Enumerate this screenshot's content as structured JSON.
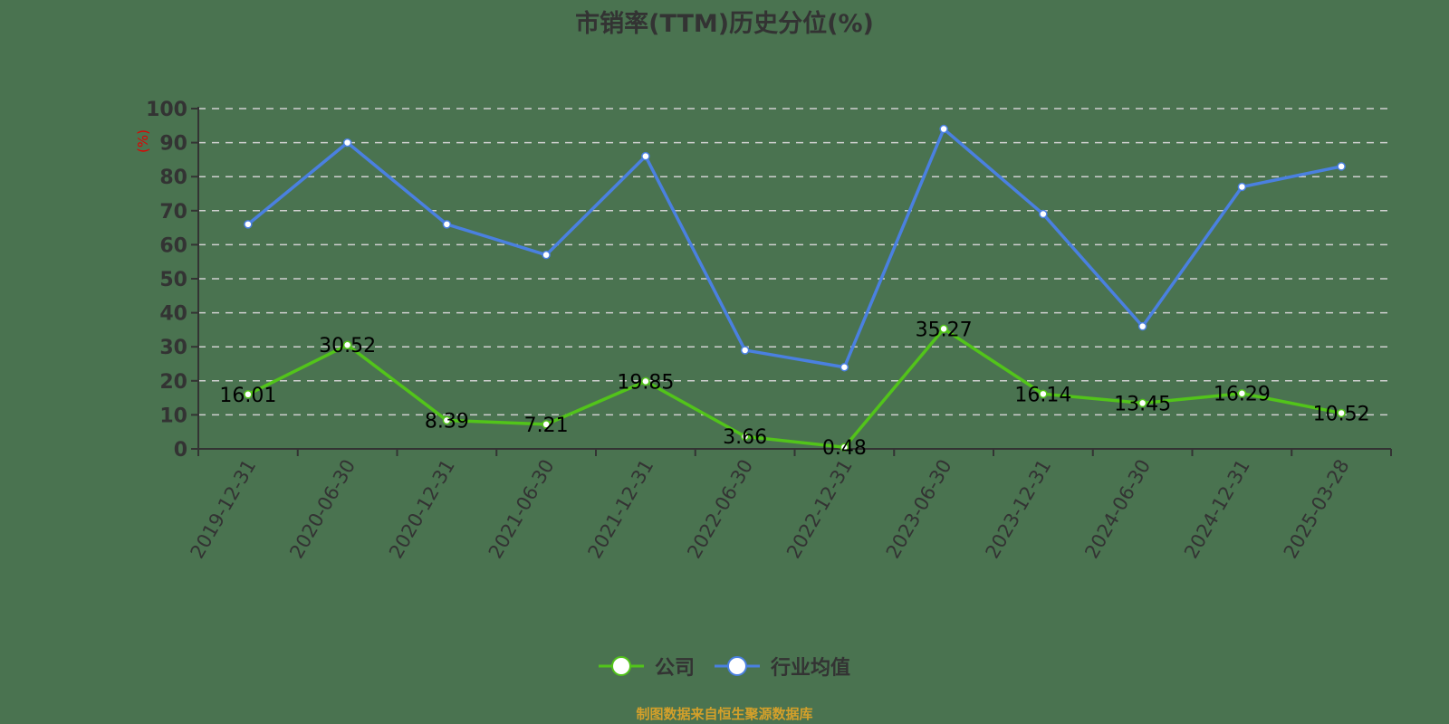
{
  "title": "市销率(TTM)历史分位(%)",
  "source": "制图数据来自恒生聚源数据库",
  "y_axis_unit": "(%)",
  "legend": [
    {
      "label": "公司",
      "color": "#52c41a"
    },
    {
      "label": "行业均值",
      "color": "#4a80e0"
    }
  ],
  "chart_data": {
    "type": "line",
    "title": "市销率(TTM)历史分位(%)",
    "xlabel": "",
    "ylabel": "(%)",
    "ylim": [
      0,
      100
    ],
    "yticks": [
      0,
      10,
      20,
      30,
      40,
      50,
      60,
      70,
      80,
      90,
      100
    ],
    "grid": true,
    "legend_position": "bottom",
    "categories": [
      "2019-12-31",
      "2020-06-30",
      "2020-12-31",
      "2021-06-30",
      "2021-12-31",
      "2022-06-30",
      "2022-12-31",
      "2023-06-30",
      "2023-12-31",
      "2024-06-30",
      "2024-12-31",
      "2025-03-28"
    ],
    "series": [
      {
        "name": "公司",
        "color": "#52c41a",
        "labeled": true,
        "values": [
          16.01,
          30.52,
          8.39,
          7.21,
          19.85,
          3.66,
          0.48,
          35.27,
          16.14,
          13.45,
          16.29,
          10.52
        ]
      },
      {
        "name": "行业均值",
        "color": "#4a80e0",
        "labeled": false,
        "values": [
          66,
          90,
          66,
          57,
          86,
          29,
          24,
          94,
          69,
          36,
          77,
          83
        ]
      }
    ]
  }
}
